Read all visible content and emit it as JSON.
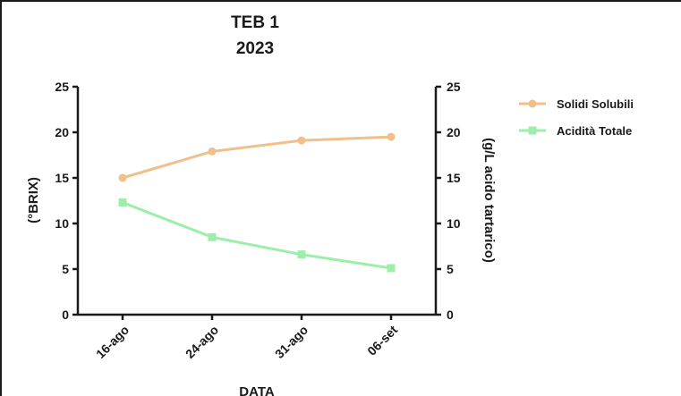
{
  "chart_data": {
    "type": "line",
    "title": [
      "TEB 1",
      "2023"
    ],
    "categories": [
      "16-ago",
      "24-ago",
      "31-ago",
      "06-set"
    ],
    "xlabel": "DATA",
    "ylabel_left": "(°BRIX)",
    "ylabel_right": "(g/L acido tartarico)",
    "ylim_left": [
      0,
      25
    ],
    "ylim_right": [
      0,
      25
    ],
    "yticks": [
      0,
      5,
      10,
      15,
      20,
      25
    ],
    "grid": false,
    "legend_position": "right",
    "series": [
      {
        "name": "Solidi Solubili",
        "axis": "left",
        "color": "#f0c08c",
        "values": [
          15.0,
          17.9,
          19.1,
          19.5
        ]
      },
      {
        "name": "Acidità Totale",
        "axis": "right",
        "color": "#9ceea8",
        "values": [
          12.3,
          8.5,
          6.6,
          5.1
        ]
      }
    ]
  }
}
